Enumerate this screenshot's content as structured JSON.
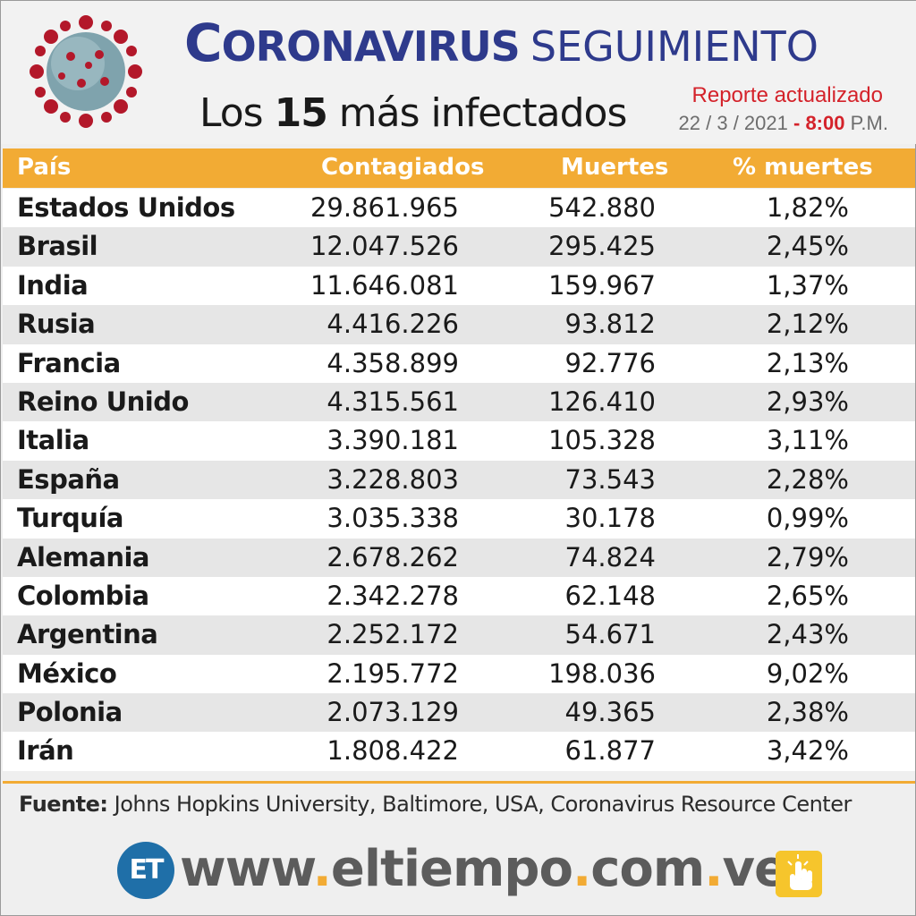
{
  "header": {
    "title_initial": "C",
    "title_rest": "ORONAVIRUS",
    "title_secondary": "SEGUIMIENTO",
    "subtitle_prefix": "Los ",
    "subtitle_number": "15",
    "subtitle_suffix": " más infectados",
    "report_label": "Reporte actualizado",
    "date": "22 / 3 / 2021",
    "date_separator": " - ",
    "time": "8:00",
    "time_suffix": " P.M."
  },
  "table": {
    "columns": [
      "País",
      "Contagiados",
      "Muertes",
      "% muertes"
    ],
    "rows": [
      {
        "country": "Estados Unidos",
        "cases": "29.861.965",
        "deaths": "542.880",
        "pct": "1,82%"
      },
      {
        "country": "Brasil",
        "cases": "12.047.526",
        "deaths": "295.425",
        "pct": "2,45%"
      },
      {
        "country": "India",
        "cases": "11.646.081",
        "deaths": "159.967",
        "pct": "1,37%"
      },
      {
        "country": "Rusia",
        "cases": "4.416.226",
        "deaths": "93.812",
        "pct": "2,12%"
      },
      {
        "country": "Francia",
        "cases": "4.358.899",
        "deaths": "92.776",
        "pct": "2,13%"
      },
      {
        "country": "Reino Unido",
        "cases": "4.315.561",
        "deaths": "126.410",
        "pct": "2,93%"
      },
      {
        "country": "Italia",
        "cases": "3.390.181",
        "deaths": "105.328",
        "pct": "3,11%"
      },
      {
        "country": "España",
        "cases": "3.228.803",
        "deaths": "73.543",
        "pct": "2,28%"
      },
      {
        "country": "Turquía",
        "cases": "3.035.338",
        "deaths": "30.178",
        "pct": "0,99%"
      },
      {
        "country": "Alemania",
        "cases": "2.678.262",
        "deaths": "74.824",
        "pct": "2,79%"
      },
      {
        "country": "Colombia",
        "cases": "2.342.278",
        "deaths": "62.148",
        "pct": "2,65%"
      },
      {
        "country": "Argentina",
        "cases": "2.252.172",
        "deaths": "54.671",
        "pct": "2,43%"
      },
      {
        "country": "México",
        "cases": "2.195.772",
        "deaths": "198.036",
        "pct": "9,02%"
      },
      {
        "country": "Polonia",
        "cases": "2.073.129",
        "deaths": "49.365",
        "pct": "2,38%"
      },
      {
        "country": "Irán",
        "cases": "1.808.422",
        "deaths": "61.877",
        "pct": "3,42%"
      }
    ]
  },
  "source": {
    "label": "Fuente:",
    "text": " Johns Hopkins University, Baltimore, USA, Coronavirus Resource Center"
  },
  "footer": {
    "logo_text": "ET",
    "url_part1": "www",
    "url_part2": "eltiempo",
    "url_part3": "com",
    "url_part4": "ve",
    "url_dot": ".",
    "icon": "pointer-hand-icon"
  },
  "colors": {
    "brand_blue": "#2e3a8c",
    "accent_orange": "#f2ab34",
    "alert_red": "#d4222a",
    "logo_blue": "#1f6fa8"
  }
}
